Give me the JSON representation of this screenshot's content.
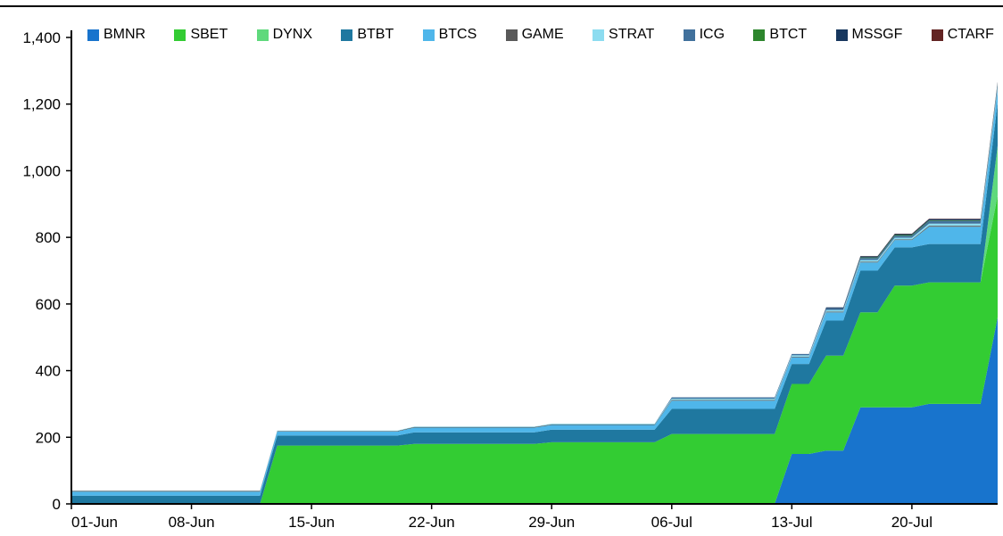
{
  "chart_data": {
    "type": "area",
    "stacked": true,
    "title": "",
    "xlabel": "",
    "ylabel": "",
    "ylim": [
      0,
      1400
    ],
    "grid": false,
    "legend_position": "top-horizontal",
    "n_points": 55,
    "x_start_label": "01-Jun",
    "x_tick_indices": [
      0,
      7,
      14,
      21,
      28,
      35,
      42,
      49
    ],
    "x_tick_labels": [
      "01-Jun",
      "08-Jun",
      "15-Jun",
      "22-Jun",
      "29-Jun",
      "06-Jul",
      "13-Jul",
      "20-Jul"
    ],
    "y_tick_values": [
      0,
      200,
      400,
      600,
      800,
      1000,
      1200,
      1400
    ],
    "y_tick_labels": [
      "0",
      "200",
      "400",
      "600",
      "800",
      "1,000",
      "1,200",
      "1,400"
    ],
    "series": [
      {
        "name": "BMNR",
        "color": "#1874CD",
        "values": [
          0,
          0,
          0,
          0,
          0,
          0,
          0,
          0,
          0,
          0,
          0,
          0,
          0,
          0,
          0,
          0,
          0,
          0,
          0,
          0,
          0,
          0,
          0,
          0,
          0,
          0,
          0,
          0,
          0,
          0,
          0,
          0,
          0,
          0,
          0,
          0,
          0,
          0,
          0,
          0,
          0,
          0,
          150,
          150,
          160,
          160,
          290,
          290,
          290,
          290,
          300,
          300,
          300,
          300,
          560
        ]
      },
      {
        "name": "SBET",
        "color": "#33CC33",
        "values": [
          0,
          0,
          0,
          0,
          0,
          0,
          0,
          0,
          0,
          0,
          0,
          0,
          175,
          175,
          175,
          175,
          175,
          175,
          175,
          175,
          180,
          180,
          180,
          180,
          180,
          180,
          180,
          180,
          185,
          185,
          185,
          185,
          185,
          185,
          185,
          210,
          210,
          210,
          210,
          210,
          210,
          210,
          210,
          210,
          285,
          285,
          285,
          285,
          365,
          365,
          365,
          365,
          365,
          365,
          365
        ]
      },
      {
        "name": "DYNX",
        "color": "#5FD97C",
        "values": [
          0,
          0,
          0,
          0,
          0,
          0,
          0,
          0,
          0,
          0,
          0,
          0,
          0,
          0,
          0,
          0,
          0,
          0,
          0,
          0,
          0,
          0,
          0,
          0,
          0,
          0,
          0,
          0,
          0,
          0,
          0,
          0,
          0,
          0,
          0,
          0,
          0,
          0,
          0,
          0,
          0,
          0,
          0,
          0,
          0,
          0,
          0,
          0,
          0,
          0,
          0,
          0,
          0,
          0,
          150
        ]
      },
      {
        "name": "BTBT",
        "color": "#1F78A0",
        "values": [
          25,
          25,
          25,
          25,
          25,
          25,
          25,
          25,
          25,
          25,
          25,
          25,
          30,
          30,
          30,
          30,
          30,
          30,
          30,
          30,
          35,
          35,
          35,
          35,
          35,
          35,
          35,
          35,
          38,
          38,
          38,
          38,
          38,
          38,
          38,
          75,
          75,
          75,
          75,
          75,
          75,
          75,
          60,
          60,
          105,
          105,
          125,
          125,
          115,
          115,
          115,
          115,
          115,
          115,
          130
        ]
      },
      {
        "name": "BTCS",
        "color": "#4FB6EA",
        "values": [
          12,
          12,
          12,
          12,
          12,
          12,
          12,
          12,
          12,
          12,
          12,
          12,
          12,
          12,
          12,
          12,
          12,
          12,
          12,
          12,
          14,
          14,
          14,
          14,
          14,
          14,
          14,
          14,
          14,
          14,
          14,
          14,
          14,
          14,
          14,
          25,
          25,
          25,
          25,
          25,
          25,
          25,
          20,
          20,
          25,
          25,
          25,
          25,
          22,
          22,
          52,
          52,
          52,
          52,
          38
        ]
      },
      {
        "name": "GAME",
        "color": "#595959",
        "values": [
          2,
          2,
          2,
          2,
          2,
          2,
          2,
          2,
          2,
          2,
          2,
          2,
          2,
          2,
          2,
          2,
          2,
          2,
          2,
          2,
          2,
          2,
          2,
          2,
          2,
          2,
          2,
          2,
          2,
          2,
          2,
          2,
          2,
          2,
          2,
          2,
          2,
          2,
          2,
          2,
          2,
          2,
          2,
          2,
          2,
          2,
          2,
          2,
          2,
          2,
          3,
          3,
          3,
          3,
          3
        ]
      },
      {
        "name": "STRAT",
        "color": "#8CDCF0",
        "values": [
          1,
          1,
          1,
          1,
          1,
          1,
          1,
          1,
          1,
          1,
          1,
          1,
          1,
          1,
          1,
          1,
          1,
          1,
          1,
          1,
          1,
          1,
          1,
          1,
          1,
          1,
          1,
          1,
          2,
          2,
          2,
          2,
          2,
          2,
          2,
          4,
          4,
          4,
          4,
          4,
          4,
          4,
          4,
          4,
          5,
          5,
          5,
          5,
          5,
          5,
          6,
          6,
          6,
          6,
          6
        ]
      },
      {
        "name": "ICG",
        "color": "#41719C",
        "values": [
          0,
          0,
          0,
          0,
          0,
          0,
          0,
          0,
          0,
          0,
          0,
          0,
          0,
          0,
          0,
          0,
          0,
          0,
          0,
          0,
          0,
          0,
          0,
          0,
          0,
          0,
          0,
          0,
          0,
          0,
          0,
          0,
          0,
          0,
          0,
          4,
          4,
          4,
          4,
          4,
          4,
          4,
          4,
          4,
          5,
          5,
          6,
          6,
          6,
          6,
          8,
          8,
          8,
          8,
          8
        ]
      },
      {
        "name": "BTCT",
        "color": "#2D862D",
        "values": [
          0,
          0,
          0,
          0,
          0,
          0,
          0,
          0,
          0,
          0,
          0,
          0,
          0,
          0,
          0,
          0,
          0,
          0,
          0,
          0,
          0,
          0,
          0,
          0,
          0,
          0,
          0,
          0,
          0,
          0,
          0,
          0,
          0,
          0,
          0,
          0,
          0,
          0,
          0,
          0,
          0,
          0,
          0,
          0,
          0,
          0,
          2,
          2,
          2,
          2,
          2,
          2,
          2,
          2,
          2
        ]
      },
      {
        "name": "MSSGF",
        "color": "#17375E",
        "values": [
          0,
          0,
          0,
          0,
          0,
          0,
          0,
          0,
          0,
          0,
          0,
          0,
          0,
          0,
          0,
          0,
          0,
          0,
          0,
          0,
          0,
          0,
          0,
          0,
          0,
          0,
          0,
          0,
          0,
          0,
          0,
          0,
          0,
          0,
          0,
          0,
          0,
          0,
          0,
          0,
          0,
          0,
          0,
          0,
          3,
          3,
          3,
          3,
          3,
          3,
          4,
          4,
          4,
          4,
          4
        ]
      },
      {
        "name": "CTARF",
        "color": "#632423",
        "values": [
          0,
          0,
          0,
          0,
          0,
          0,
          0,
          0,
          0,
          0,
          0,
          0,
          0,
          0,
          0,
          0,
          0,
          0,
          0,
          0,
          0,
          0,
          0,
          0,
          0,
          0,
          0,
          0,
          0,
          0,
          0,
          0,
          0,
          0,
          0,
          0,
          0,
          0,
          0,
          0,
          0,
          0,
          0,
          0,
          0,
          0,
          1,
          1,
          1,
          1,
          1,
          1,
          1,
          1,
          1
        ]
      }
    ]
  }
}
